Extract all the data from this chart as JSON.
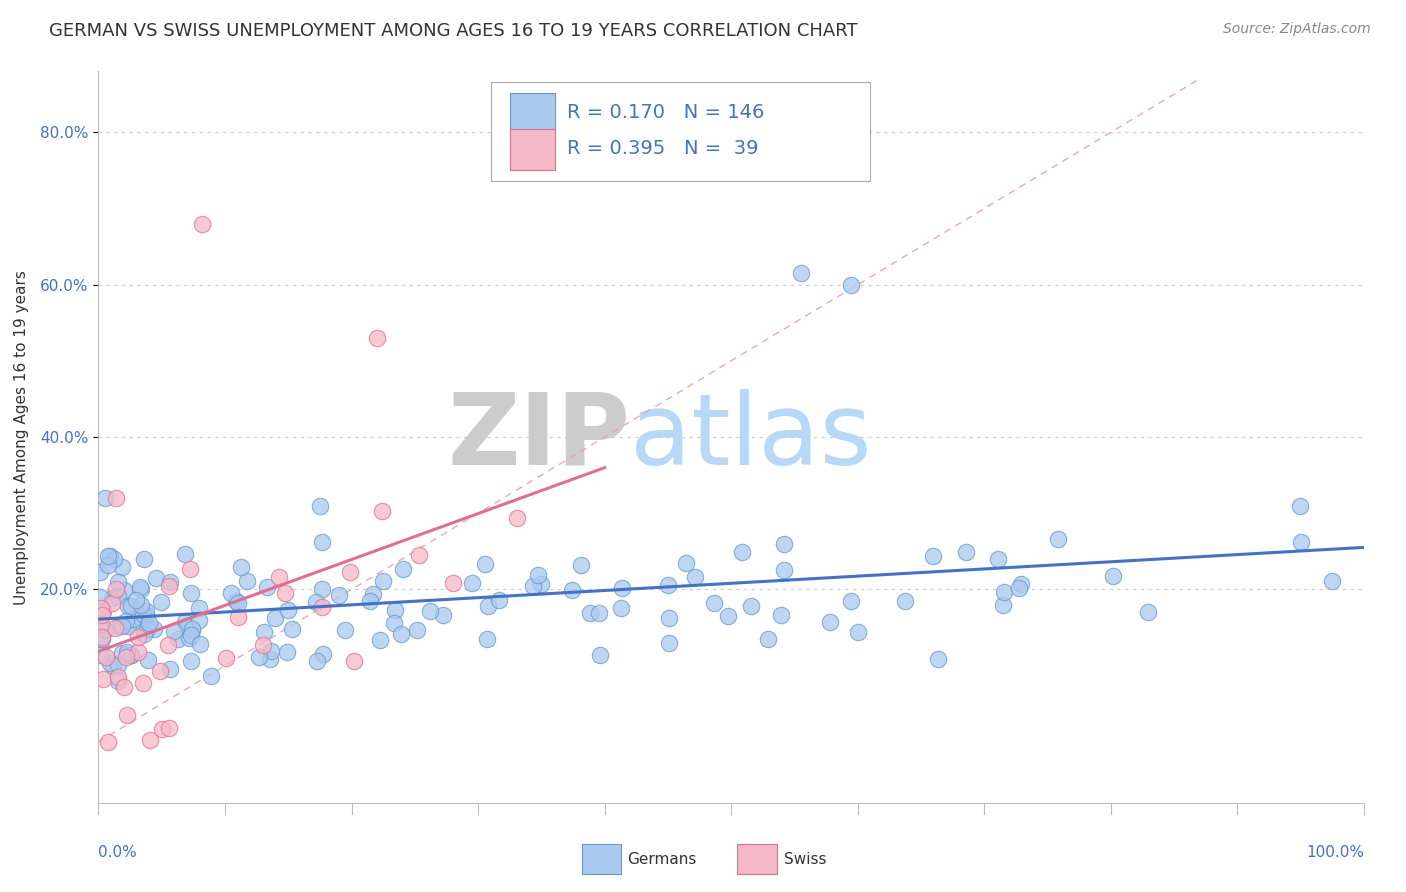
{
  "title": "GERMAN VS SWISS UNEMPLOYMENT AMONG AGES 16 TO 19 YEARS CORRELATION CHART",
  "source": "Source: ZipAtlas.com",
  "ylabel": "Unemployment Among Ages 16 to 19 years",
  "xlim": [
    0.0,
    1.0
  ],
  "ylim": [
    -0.08,
    0.88
  ],
  "plot_ylim": [
    -0.08,
    0.88
  ],
  "german_R": 0.17,
  "german_N": 146,
  "swiss_R": 0.395,
  "swiss_N": 39,
  "german_color": "#aac9f0",
  "swiss_color": "#f5b8c8",
  "german_edge_color": "#6699cc",
  "swiss_edge_color": "#e07090",
  "trend_german_color": "#4472c4",
  "trend_swiss_color": "#e07090",
  "diag_line_color": "#e8a0b0",
  "watermark_zip_color": "#d8d8d8",
  "watermark_atlas_color": "#b8d4f0",
  "title_fontsize": 13,
  "source_fontsize": 10,
  "legend_fontsize": 14,
  "axis_label_fontsize": 11,
  "tick_fontsize": 11
}
